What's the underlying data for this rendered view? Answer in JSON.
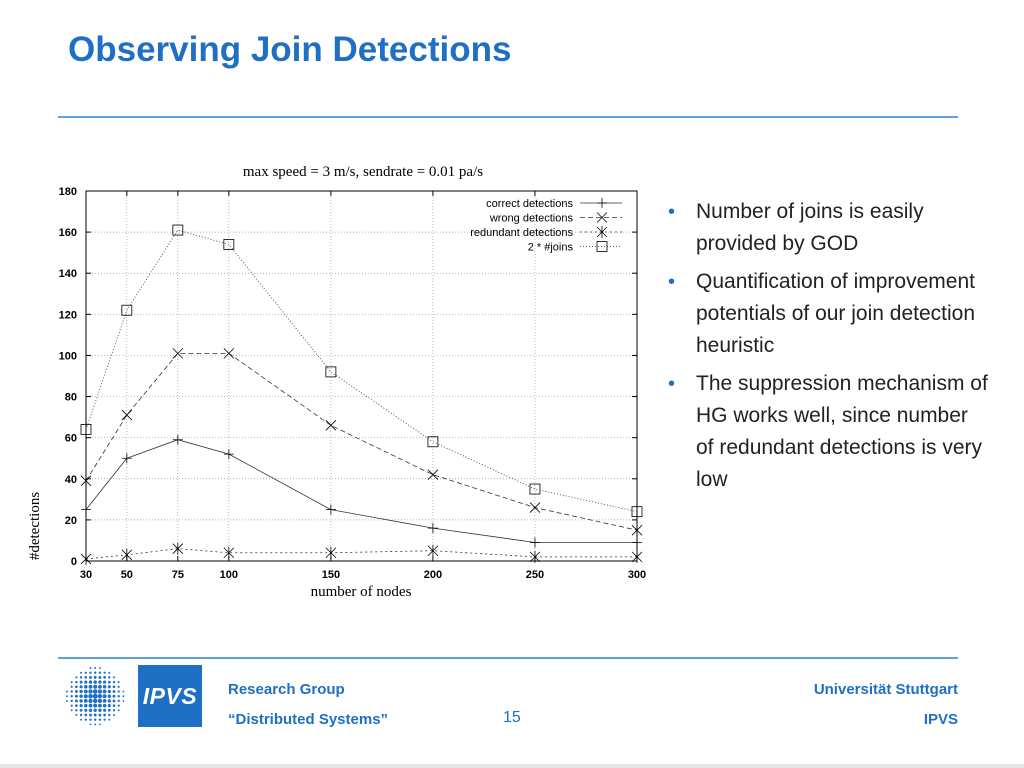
{
  "slide": {
    "title": "Observing Join Detections",
    "bullets": [
      "Number of joins is easily provided by GOD",
      "Quantification of improvement potentials of our join detection heuristic",
      "The suppression mechanism of HG works well, since number of redundant detections is very low"
    ],
    "page_number": "15"
  },
  "footer": {
    "logo_text": "IPVS",
    "left_line1": "Research Group",
    "left_line2": "“Distributed Systems”",
    "right_line1": "Universität Stuttgart",
    "right_line2": "IPVS"
  },
  "chart_data": {
    "type": "line",
    "title": "max speed = 3 m/s, sendrate = 0.01 pa/s",
    "xlabel": "number of nodes",
    "ylabel": "#detections",
    "x": [
      30,
      50,
      75,
      100,
      150,
      200,
      250,
      300
    ],
    "x_ticks": [
      30,
      50,
      75,
      100,
      150,
      200,
      250,
      300
    ],
    "y_ticks": [
      0,
      20,
      40,
      60,
      80,
      100,
      120,
      140,
      160,
      180
    ],
    "xlim": [
      30,
      300
    ],
    "ylim": [
      0,
      180
    ],
    "grid": true,
    "legend_position": "top-right",
    "series": [
      {
        "name": "correct detections",
        "marker": "plus",
        "dash": "",
        "values": [
          25,
          50,
          59,
          52,
          25,
          16,
          9,
          9
        ]
      },
      {
        "name": "wrong detections",
        "marker": "x",
        "dash": "5,3",
        "values": [
          39,
          71,
          101,
          101,
          66,
          42,
          26,
          15
        ]
      },
      {
        "name": "redundant detections",
        "marker": "star",
        "dash": "2,3",
        "values": [
          1,
          3,
          6,
          4,
          4,
          5,
          2,
          2
        ]
      },
      {
        "name": "2 * #joins",
        "marker": "square",
        "dash": "1,2",
        "values": [
          64,
          122,
          161,
          154,
          92,
          58,
          35,
          24
        ]
      }
    ]
  }
}
